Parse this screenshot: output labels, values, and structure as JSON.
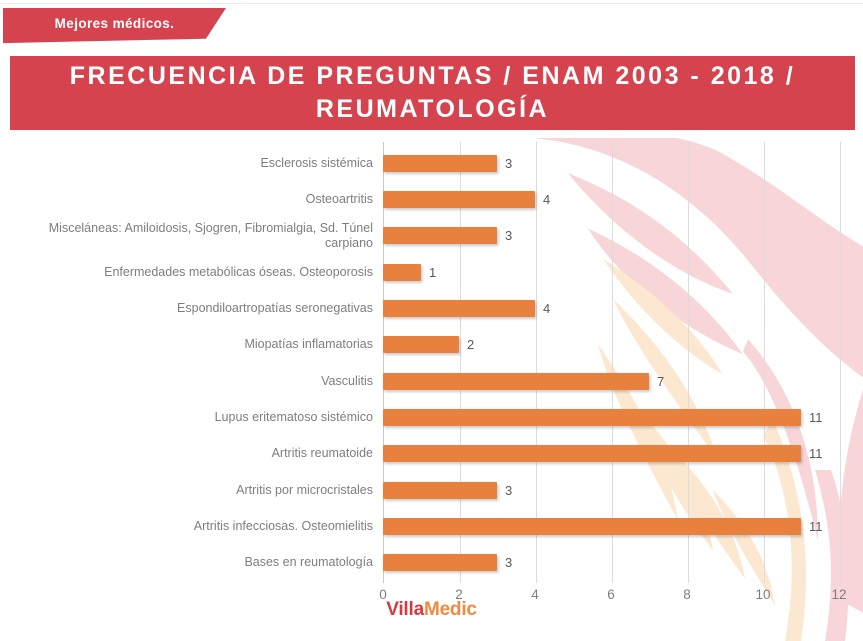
{
  "ribbon": {
    "label": "Mejores médicos."
  },
  "header": {
    "title_line1": "FRECUENCIA DE PREGUNTAS / ENAM 2003 - 2018 /",
    "title_line2": "REUMATOLOGÍA"
  },
  "chart_data": {
    "type": "bar",
    "orientation": "horizontal",
    "title": "FRECUENCIA DE PREGUNTAS / ENAM 2003 - 2018 / REUMATOLOGÍA",
    "categories": [
      "Esclerosis sistémica",
      "Osteoartritis",
      "Misceláneas: Amiloidosis, Sjogren, Fibromialgia, Sd. Túnel carpiano",
      "Enfermedades metabólicas óseas. Osteoporosis",
      "Espondiloartropatías seronegativas",
      "Miopatías inflamatorias",
      "Vasculitis",
      "Lupus eritematoso sistémico",
      "Artritis reumatoide",
      "Artritis por microcristales",
      "Artritis infecciosas. Osteomielitis",
      "Bases en reumatología"
    ],
    "values": [
      3,
      4,
      3,
      1,
      4,
      2,
      7,
      11,
      11,
      3,
      11,
      3
    ],
    "value_labels": true,
    "xlabel": "",
    "ylabel": "",
    "xlim": [
      0,
      12
    ],
    "xticks": [
      0,
      2,
      4,
      6,
      8,
      10,
      12
    ],
    "grid": true,
    "legend": false,
    "bar_color": "#E8813D"
  },
  "footer": {
    "logo_part1": "Villa",
    "logo_part2": "Medic"
  },
  "colors": {
    "accent_red": "#D5444E",
    "bar_orange": "#E8813D",
    "logo_red": "#D63940",
    "logo_orange": "#F08A3C",
    "label_gray": "#7E7E7E",
    "value_gray": "#595959",
    "grid_gray": "#DCDCDC",
    "phoenix_pink": "#F7D5D9",
    "phoenix_peach": "#FCE7D1"
  }
}
